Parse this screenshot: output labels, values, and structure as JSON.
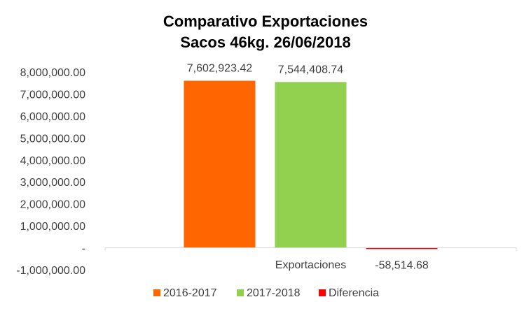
{
  "chart_data": {
    "type": "bar",
    "title_lines": [
      "Comparativo  Exportaciones",
      "Sacos 46kg. 26/06/2018"
    ],
    "categories": [
      "Exportaciones"
    ],
    "series": [
      {
        "name": "2016-2017",
        "values": [
          7602923.42
        ],
        "color": "#ff6600",
        "label": "7,602,923.42"
      },
      {
        "name": "2017-2018",
        "values": [
          7544408.74
        ],
        "color": "#92d050",
        "label": "7,544,408.74"
      },
      {
        "name": "Diferencia",
        "values": [
          -58514.68
        ],
        "color": "#ff0000",
        "label": "-58,514.68"
      }
    ],
    "ylim": [
      -1000000,
      8000000
    ],
    "yticks": [
      {
        "value": 8000000,
        "label": "8,000,000.00"
      },
      {
        "value": 7000000,
        "label": "7,000,000.00"
      },
      {
        "value": 6000000,
        "label": "6,000,000.00"
      },
      {
        "value": 5000000,
        "label": "5,000,000.00"
      },
      {
        "value": 4000000,
        "label": "4,000,000.00"
      },
      {
        "value": 3000000,
        "label": "3,000,000.00"
      },
      {
        "value": 2000000,
        "label": "2,000,000.00"
      },
      {
        "value": 1000000,
        "label": "1,000,000.00"
      },
      {
        "value": 0,
        "label": "-"
      },
      {
        "value": -1000000,
        "label": "-1,000,000.00"
      }
    ],
    "grid": false,
    "legend_position": "bottom"
  }
}
